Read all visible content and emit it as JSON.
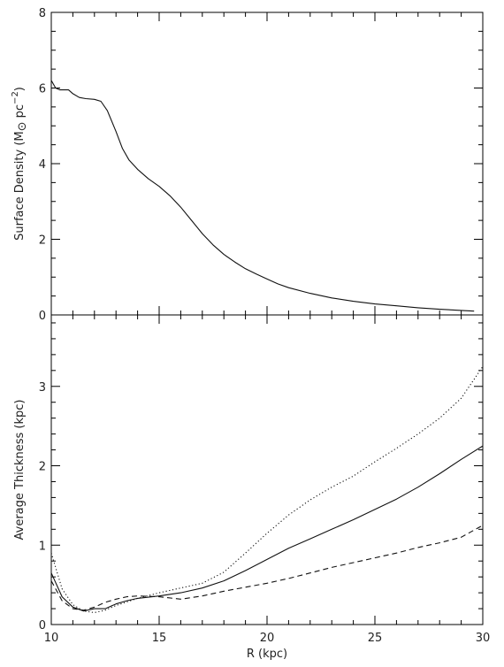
{
  "chart_data": [
    {
      "type": "line",
      "title": "",
      "xlabel": "",
      "ylabel_main": "Surface Density (M",
      "ylabel_sym": "⊙",
      "ylabel_rest": " pc",
      "ylabel_sup": "−2",
      "ylabel_close": ")",
      "xlim": [
        10,
        30
      ],
      "ylim": [
        0,
        8
      ],
      "xticks": [
        10,
        15,
        20,
        25,
        30
      ],
      "yticks": [
        0,
        2,
        4,
        6,
        8
      ],
      "grid": false,
      "series": [
        {
          "style": "solid",
          "x": [
            10.0,
            10.2,
            10.4,
            10.8,
            11.0,
            11.3,
            11.6,
            12.0,
            12.3,
            12.6,
            13.0,
            13.3,
            13.6,
            14.0,
            14.5,
            15.0,
            15.5,
            16.0,
            16.5,
            17.0,
            17.5,
            18.0,
            18.5,
            19.0,
            19.5,
            20.0,
            20.5,
            21.0,
            22.0,
            23.0,
            24.0,
            25.0,
            26.0,
            27.0,
            28.0,
            29.0,
            29.6
          ],
          "y": [
            6.2,
            6.0,
            5.95,
            5.95,
            5.85,
            5.75,
            5.72,
            5.7,
            5.65,
            5.4,
            4.85,
            4.4,
            4.1,
            3.85,
            3.6,
            3.4,
            3.15,
            2.85,
            2.5,
            2.15,
            1.85,
            1.6,
            1.4,
            1.22,
            1.08,
            0.95,
            0.82,
            0.72,
            0.57,
            0.45,
            0.36,
            0.29,
            0.24,
            0.19,
            0.15,
            0.12,
            0.1
          ]
        }
      ]
    },
    {
      "type": "line",
      "title": "",
      "xlabel": "R (kpc)",
      "ylabel": "Average Thickness (kpc)",
      "xlim": [
        10,
        30
      ],
      "ylim": [
        0,
        3.9
      ],
      "xticks": [
        10,
        15,
        20,
        25,
        30
      ],
      "yticks": [
        0,
        1,
        2,
        3
      ],
      "grid": false,
      "series": [
        {
          "style": "solid",
          "x": [
            10.0,
            10.5,
            11.0,
            11.5,
            12.0,
            12.5,
            13.0,
            13.5,
            14.0,
            15.0,
            16.0,
            17.0,
            18.0,
            19.0,
            20.0,
            21.0,
            22.0,
            23.0,
            24.0,
            25.0,
            26.0,
            27.0,
            28.0,
            29.0,
            30.0
          ],
          "y": [
            0.65,
            0.35,
            0.22,
            0.17,
            0.2,
            0.2,
            0.26,
            0.3,
            0.33,
            0.36,
            0.4,
            0.46,
            0.55,
            0.68,
            0.82,
            0.96,
            1.08,
            1.2,
            1.32,
            1.45,
            1.58,
            1.73,
            1.9,
            2.08,
            2.25
          ]
        },
        {
          "style": "dotted",
          "x": [
            10.0,
            10.5,
            11.0,
            11.5,
            12.0,
            12.5,
            13.0,
            14.0,
            15.0,
            16.0,
            17.0,
            18.0,
            19.0,
            20.0,
            21.0,
            22.0,
            23.0,
            24.0,
            25.0,
            26.0,
            27.0,
            28.0,
            29.0,
            30.0
          ],
          "y": [
            0.9,
            0.45,
            0.25,
            0.17,
            0.15,
            0.18,
            0.24,
            0.33,
            0.4,
            0.46,
            0.52,
            0.66,
            0.9,
            1.15,
            1.38,
            1.57,
            1.73,
            1.87,
            2.05,
            2.22,
            2.4,
            2.6,
            2.85,
            3.25
          ]
        },
        {
          "style": "dashed",
          "x": [
            10.0,
            10.5,
            11.0,
            11.5,
            12.0,
            12.5,
            13.0,
            13.5,
            14.0,
            15.0,
            16.0,
            17.0,
            18.0,
            19.0,
            20.0,
            21.0,
            22.0,
            23.0,
            24.0,
            25.0,
            26.0,
            27.0,
            28.0,
            29.0,
            30.0
          ],
          "y": [
            0.55,
            0.3,
            0.2,
            0.18,
            0.22,
            0.28,
            0.32,
            0.35,
            0.36,
            0.35,
            0.32,
            0.36,
            0.42,
            0.47,
            0.52,
            0.58,
            0.65,
            0.72,
            0.78,
            0.84,
            0.9,
            0.97,
            1.03,
            1.1,
            1.25
          ]
        }
      ]
    }
  ]
}
